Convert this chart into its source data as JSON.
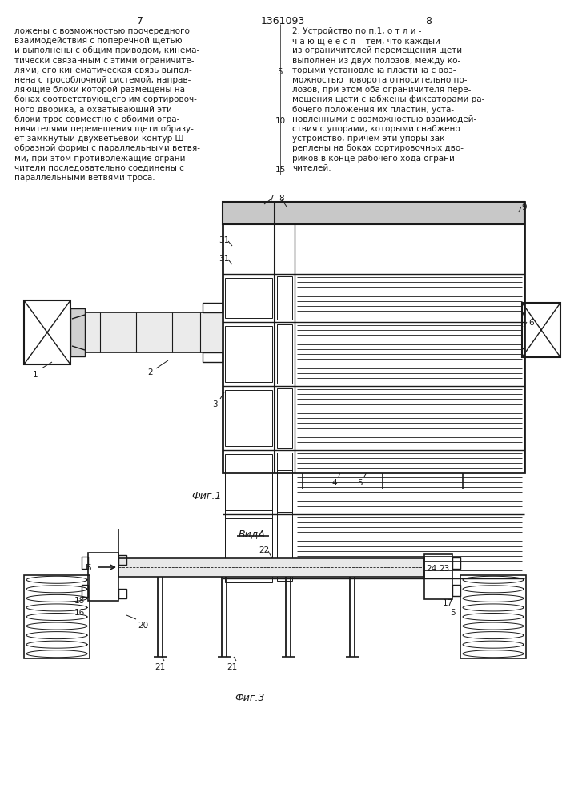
{
  "page_width": 7.07,
  "page_height": 10.0,
  "bg_color": "#ffffff",
  "text_color": "#1a1a1a",
  "line_color": "#1a1a1a",
  "left_col_lines": [
    "ложены с возможностью поочередного",
    "взаимодействия с поперечной щетью",
    "и выполнены с общим приводом, кинема-",
    "тически связанным с этими ограничите-",
    "лями, его кинематическая связь выпол-",
    "нена с трособлочной системой, направ-",
    "ляющие блоки которой размещены на",
    "бонах соответствующего им сортировоч-",
    "ного дворика, а охватывающий эти",
    "блоки трос совместно с обоими огра-",
    "ничителями перемещения щети образу-",
    "ет замкнутый двухветьевой контур Ш-",
    "образной формы с параллельными ветвя-",
    "ми, при этом противолежащие ограни-",
    "чители последовательно соединены с",
    "параллельными ветвями троса."
  ],
  "right_col_lines": [
    "2. Устройство по п.1, о т л и -",
    "ч а ю щ е е с я    тем, что каждый",
    "из ограничителей перемещения щети",
    "выполнен из двух полозов, между ко-",
    "торыми установлена пластина с воз-",
    "можностью поворота относительно по-",
    "лозов, при этом оба ограничителя пере-",
    "мещения щети снабжены фиксаторами ра-",
    "бочего положения их пластин, уста-",
    "новленными с возможностью взаимодей-",
    "ствия с упорами, которыми снабжено",
    "устройство, причём эти упоры зак-",
    "реплены на боках сортировочных дво-",
    "риков в конце рабочего хода ограни-",
    "чителей."
  ],
  "line_numbers": {
    "4": "5",
    "9": "10",
    "14": "15"
  }
}
